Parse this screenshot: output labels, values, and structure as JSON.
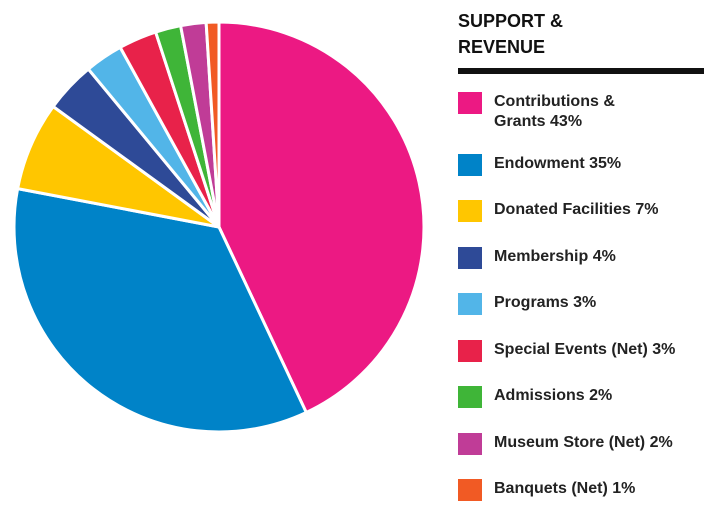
{
  "chart_data": {
    "type": "pie",
    "title": "SUPPORT & REVENUE",
    "unit": "%",
    "series": [
      {
        "name": "Contributions & Grants",
        "label": "Contributions & Grants 43%",
        "value": 43,
        "color": "#ec1983"
      },
      {
        "name": "Endowment",
        "label": "Endowment 35%",
        "value": 35,
        "color": "#0083c8"
      },
      {
        "name": "Donated Facilities",
        "label": "Donated Facilities 7%",
        "value": 7,
        "color": "#ffc600"
      },
      {
        "name": "Membership",
        "label": "Membership 4%",
        "value": 4,
        "color": "#2e4a97"
      },
      {
        "name": "Programs",
        "label": "Programs 3%",
        "value": 3,
        "color": "#52b5e8"
      },
      {
        "name": "Special Events (Net)",
        "label": "Special Events (Net) 3%",
        "value": 3,
        "color": "#e8224a"
      },
      {
        "name": "Admissions",
        "label": "Admissions 2%",
        "value": 2,
        "color": "#3fb538"
      },
      {
        "name": "Museum Store (Net)",
        "label": "Museum Store (Net) 2%",
        "value": 2,
        "color": "#c03c97"
      },
      {
        "name": "Banquets (Net)",
        "label": "Banquets (Net) 1%",
        "value": 1,
        "color": "#f15a24"
      }
    ]
  }
}
